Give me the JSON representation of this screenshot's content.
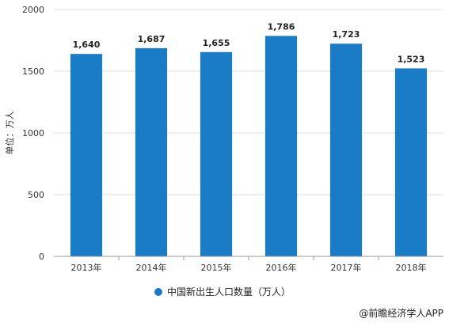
{
  "chart_data": {
    "type": "bar",
    "categories": [
      "2013年",
      "2014年",
      "2015年",
      "2016年",
      "2017年",
      "2018年"
    ],
    "series": [
      {
        "name": "中国新出生人口数量（万人）",
        "values": [
          1640,
          1687,
          1655,
          1786,
          1723,
          1523
        ],
        "value_labels": [
          "1,640",
          "1,687",
          "1,655",
          "1,786",
          "1,723",
          "1,523"
        ],
        "color": "#1a7bc6"
      }
    ],
    "ylabel": "单位：万人",
    "ylim": [
      0,
      2000
    ],
    "yticks": [
      0,
      500,
      1000,
      1500,
      2000
    ],
    "grid": true,
    "legend_position": "bottom"
  },
  "source": "@前瞻经济学人APP",
  "colors": {
    "bar": "#1a7bc6",
    "grid": "#dddddd",
    "axis": "#999999"
  }
}
